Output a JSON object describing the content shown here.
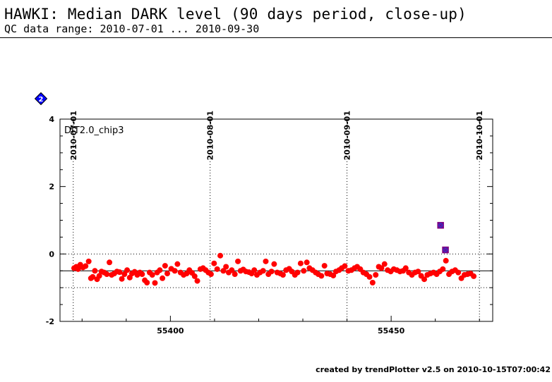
{
  "header": {
    "title": "HAWKI: Median DARK level (90 days period, close-up)",
    "subtitle": "QC data range: 2010-07-01 ... 2010-09-30"
  },
  "footer": {
    "text": "created by trendPlotter v2.5 on 2010-10-15T07:00:42"
  },
  "chart_data": {
    "type": "scatter",
    "panel_label": "DIT2.0_chip3",
    "legend_marker": "2",
    "xlim": [
      55375,
      55473
    ],
    "ylim": [
      -2,
      4
    ],
    "x_ticks": [
      55400,
      55450
    ],
    "y_ticks": [
      4,
      2,
      0,
      -2
    ],
    "date_ticks": [
      {
        "mjd": 55378,
        "label": "2010-07-01"
      },
      {
        "mjd": 55409,
        "label": "2010-08-01"
      },
      {
        "mjd": 55440,
        "label": "2010-09-01"
      },
      {
        "mjd": 55470,
        "label": "2010-10-01"
      }
    ],
    "reference_lines": {
      "mean": -0.5,
      "upper": 0.0,
      "lower": -1.0
    },
    "colors": {
      "points": "#ff0000",
      "outlier_fill": "#3333cc",
      "outlier_edge": "#800080",
      "legend": "#0000ff"
    },
    "series": [
      {
        "x": [
          55378.2,
          55378.7,
          55379.1,
          55379.6,
          55380.2,
          55380.8,
          55381.5,
          55382.0,
          55382.4,
          55382.9,
          55383.4,
          55383.9,
          55384.4,
          55385.0,
          55385.6,
          55386.2,
          55386.7,
          55387.3,
          55387.9,
          55388.5,
          55389.0,
          55389.6,
          55390.2,
          55390.8,
          55391.3,
          55391.9,
          55392.5,
          55393.1,
          55393.6,
          55394.2,
          55394.7,
          55395.3,
          55395.9,
          55396.5,
          55397.0,
          55397.6,
          55398.2,
          55398.8,
          55399.3,
          55400.2,
          55401.0,
          55401.6,
          55402.3,
          55403.0,
          55403.7,
          55404.3,
          55404.9,
          55405.5,
          55406.1,
          55406.8,
          55407.4,
          55408.0,
          55408.6,
          55409.2,
          55409.9,
          55410.6,
          55411.3,
          55412.0,
          55412.6,
          55413.2,
          55413.9,
          55414.6,
          55415.3,
          55415.9,
          55416.5,
          55417.1,
          55417.8,
          55418.4,
          55419.0,
          55419.6,
          55420.3,
          55421.0,
          55421.6,
          55422.2,
          55422.9,
          55423.5,
          55424.2,
          55424.9,
          55425.5,
          55426.2,
          55426.9,
          55427.5,
          55428.2,
          55428.8,
          55429.5,
          55430.2,
          55430.9,
          55431.5,
          55432.2,
          55432.9,
          55433.5,
          55434.2,
          55434.9,
          55435.5,
          55436.2,
          55436.9,
          55437.5,
          55438.2,
          55438.8,
          55439.5,
          55440.3,
          55441.0,
          55441.7,
          55442.3,
          55443.0,
          55443.7,
          55444.4,
          55445.1,
          55445.8,
          55446.5,
          55447.2,
          55447.8,
          55448.5,
          55449.2,
          55449.9,
          55450.6,
          55451.3,
          55452.0,
          55452.7,
          55453.3,
          55454.0,
          55454.7,
          55455.4,
          55456.1,
          55456.8,
          55457.5,
          55458.2,
          55458.9,
          55459.6,
          55460.3,
          55461.0,
          55461.7,
          55462.4,
          55463.1,
          55463.8,
          55464.5,
          55465.2,
          55465.9,
          55466.6,
          55467.3,
          55468.0,
          55468.7
        ],
        "y": [
          -0.42,
          -0.38,
          -0.45,
          -0.32,
          -0.4,
          -0.36,
          -0.22,
          -0.72,
          -0.68,
          -0.5,
          -0.75,
          -0.65,
          -0.52,
          -0.55,
          -0.6,
          -0.25,
          -0.62,
          -0.58,
          -0.52,
          -0.54,
          -0.74,
          -0.6,
          -0.48,
          -0.7,
          -0.58,
          -0.53,
          -0.62,
          -0.55,
          -0.6,
          -0.78,
          -0.85,
          -0.55,
          -0.62,
          -0.86,
          -0.55,
          -0.48,
          -0.72,
          -0.35,
          -0.58,
          -0.44,
          -0.5,
          -0.3,
          -0.55,
          -0.62,
          -0.58,
          -0.48,
          -0.56,
          -0.66,
          -0.8,
          -0.45,
          -0.42,
          -0.48,
          -0.55,
          -0.6,
          -0.28,
          -0.45,
          -0.05,
          -0.5,
          -0.38,
          -0.55,
          -0.48,
          -0.6,
          -0.22,
          -0.5,
          -0.46,
          -0.52,
          -0.54,
          -0.58,
          -0.48,
          -0.62,
          -0.55,
          -0.5,
          -0.22,
          -0.6,
          -0.52,
          -0.3,
          -0.55,
          -0.58,
          -0.62,
          -0.48,
          -0.44,
          -0.52,
          -0.62,
          -0.55,
          -0.28,
          -0.5,
          -0.25,
          -0.42,
          -0.48,
          -0.55,
          -0.6,
          -0.65,
          -0.35,
          -0.58,
          -0.6,
          -0.64,
          -0.52,
          -0.48,
          -0.42,
          -0.36,
          -0.5,
          -0.48,
          -0.42,
          -0.38,
          -0.45,
          -0.55,
          -0.6,
          -0.68,
          -0.85,
          -0.62,
          -0.38,
          -0.42,
          -0.3,
          -0.48,
          -0.52,
          -0.45,
          -0.48,
          -0.52,
          -0.5,
          -0.42,
          -0.55,
          -0.62,
          -0.55,
          -0.52,
          -0.65,
          -0.75,
          -0.62,
          -0.58,
          -0.55,
          -0.6,
          -0.52,
          -0.45,
          -0.2,
          -0.6,
          -0.52,
          -0.48,
          -0.55,
          -0.72,
          -0.62,
          -0.6,
          -0.58,
          -0.66
        ]
      },
      {
        "x": [
          55461.2,
          55462.3
        ],
        "y": [
          0.85,
          0.12
        ]
      }
    ]
  }
}
